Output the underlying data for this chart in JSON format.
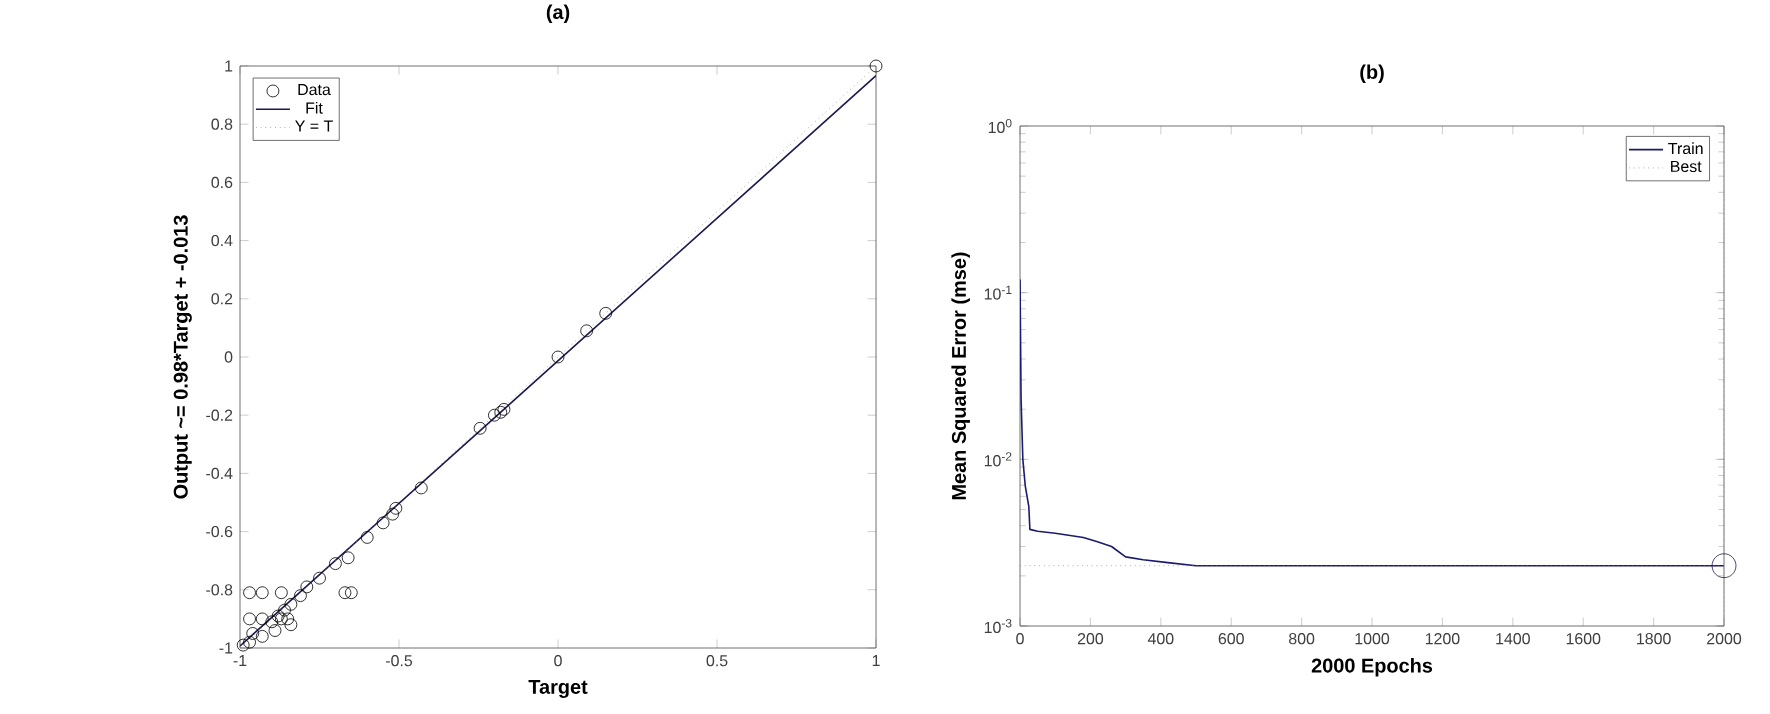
{
  "chart_data": [
    {
      "type": "scatter",
      "title": "(a)",
      "xlabel": "Target",
      "ylabel": "Output ~= 0.98*Target + -0.013",
      "xlim": [
        -1,
        1
      ],
      "ylim": [
        -1,
        1
      ],
      "xticks": [
        -1,
        -0.5,
        0,
        0.5,
        1
      ],
      "yticks": [
        -1,
        -0.8,
        -0.6,
        -0.4,
        -0.2,
        0,
        0.2,
        0.4,
        0.6,
        0.8,
        1
      ],
      "legend": "top left",
      "grid": false,
      "series": [
        {
          "name": "Data",
          "marker": "circle",
          "color": "#000000",
          "x": [
            1,
            0.15,
            0.09,
            0.0,
            -0.17,
            -0.18,
            -0.2,
            -0.245,
            -0.43,
            -0.51,
            -0.52,
            -0.55,
            -0.6,
            -0.66,
            -0.7,
            -0.75,
            -0.67,
            -0.65,
            -0.87,
            -0.93,
            -0.97,
            -0.97,
            -0.93,
            -0.79,
            -0.81,
            -0.84,
            -0.86,
            -0.88,
            -0.9,
            -0.87,
            -0.85,
            -0.84,
            -0.89,
            -0.93,
            -0.97,
            -0.99,
            -0.96
          ],
          "values": [
            1,
            0.15,
            0.09,
            0.0,
            -0.18,
            -0.19,
            -0.2,
            -0.245,
            -0.45,
            -0.52,
            -0.54,
            -0.57,
            -0.62,
            -0.69,
            -0.71,
            -0.76,
            -0.81,
            -0.81,
            -0.81,
            -0.81,
            -0.81,
            -0.9,
            -0.9,
            -0.79,
            -0.82,
            -0.85,
            -0.87,
            -0.89,
            -0.91,
            -0.9,
            -0.9,
            -0.92,
            -0.94,
            -0.96,
            -0.98,
            -0.99,
            -0.95
          ]
        },
        {
          "name": "Fit",
          "type": "line",
          "line_style": "solid",
          "color": "#1a1a4e",
          "x": [
            -1,
            1
          ],
          "values": [
            -0.993,
            0.967
          ]
        },
        {
          "name": "Y = T",
          "type": "line",
          "line_style": "dotted",
          "color": "#808080",
          "x": [
            -1,
            1
          ],
          "values": [
            -1,
            1
          ]
        }
      ]
    },
    {
      "type": "line",
      "title": "(b)",
      "xlabel": "2000 Epochs",
      "ylabel": "Mean Squared Error  (mse)",
      "log": "y",
      "xlim": [
        0,
        2000
      ],
      "ylim": [
        0.001,
        1
      ],
      "xticks": [
        0,
        200,
        400,
        600,
        800,
        1000,
        1200,
        1400,
        1600,
        1800,
        2000
      ],
      "yticks": [
        {
          "value": 0.001,
          "label": "10$^{-3}$"
        },
        {
          "value": 0.01,
          "label": "10$^{-2}$"
        },
        {
          "value": 0.1,
          "label": "10$^{-1}$"
        },
        {
          "value": 1,
          "label": "10$^{0}$"
        }
      ],
      "legend": "top right",
      "grid": false,
      "ref_lines": [
        {
          "axis": "x",
          "value": 2000,
          "line_style": "dotted",
          "color": "#808080"
        }
      ],
      "series": [
        {
          "name": "Train",
          "line_style": "solid",
          "color": "#1a1a6e",
          "x": [
            0,
            3,
            8,
            15,
            25,
            28,
            50,
            100,
            180,
            220,
            260,
            300,
            350,
            420,
            500,
            660,
            2000
          ],
          "values": [
            0.12,
            0.023,
            0.01,
            0.0069,
            0.0052,
            0.0038,
            0.0037,
            0.0036,
            0.0034,
            0.0032,
            0.003,
            0.0026,
            0.0025,
            0.0024,
            0.0023,
            0.0023,
            0.0023
          ]
        },
        {
          "name": "Best",
          "line_style": "dotted",
          "color": "#808080",
          "x": [
            0,
            2000
          ],
          "values": [
            0.0023,
            0.0023
          ]
        },
        {
          "type": "scatter",
          "marker": "circle",
          "color": "#1a1a4e",
          "x": [
            2000
          ],
          "values": [
            0.0023
          ]
        }
      ]
    }
  ]
}
